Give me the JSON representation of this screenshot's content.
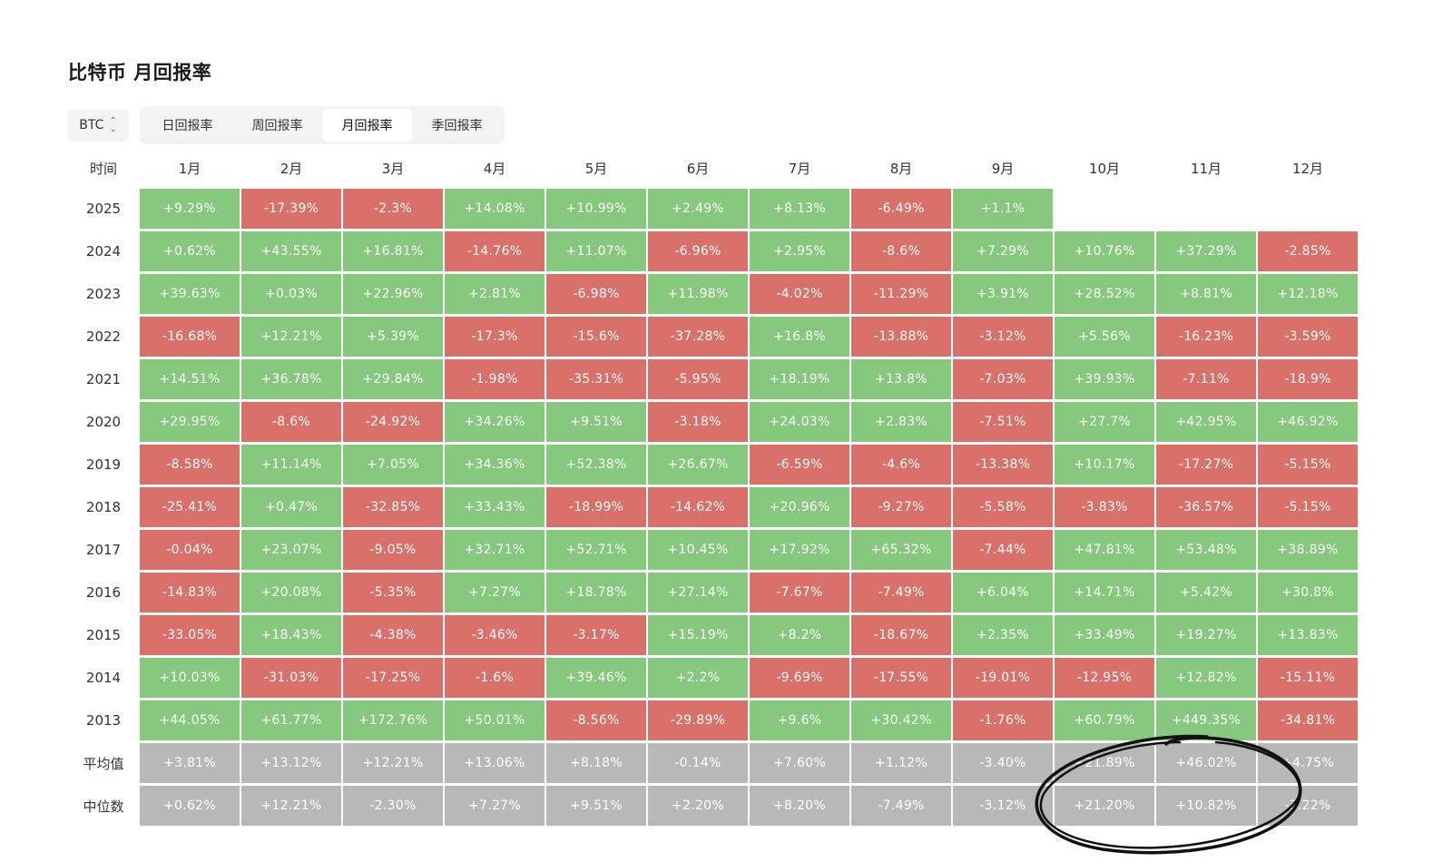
{
  "title": "比特币 月回报率",
  "asset_select": {
    "value": "BTC",
    "icon": "chevron-up-down-icon"
  },
  "tabs": [
    {
      "label": "日回报率",
      "active": false
    },
    {
      "label": "周回报率",
      "active": false
    },
    {
      "label": "月回报率",
      "active": true
    },
    {
      "label": "季回报率",
      "active": false
    }
  ],
  "colors": {
    "positive": "#86c87e",
    "negative": "#d9716a",
    "stat": "#b8b8b8"
  },
  "table": {
    "corner_label": "时间",
    "months": [
      "1月",
      "2月",
      "3月",
      "4月",
      "5月",
      "6月",
      "7月",
      "8月",
      "9月",
      "10月",
      "11月",
      "12月"
    ],
    "rows": [
      {
        "label": "2025",
        "values": [
          "+9.29%",
          "-17.39%",
          "-2.3%",
          "+14.08%",
          "+10.99%",
          "+2.49%",
          "+8.13%",
          "-6.49%",
          "+1.1%",
          "",
          "",
          ""
        ]
      },
      {
        "label": "2024",
        "values": [
          "+0.62%",
          "+43.55%",
          "+16.81%",
          "-14.76%",
          "+11.07%",
          "-6.96%",
          "+2.95%",
          "-8.6%",
          "+7.29%",
          "+10.76%",
          "+37.29%",
          "-2.85%"
        ]
      },
      {
        "label": "2023",
        "values": [
          "+39.63%",
          "+0.03%",
          "+22.96%",
          "+2.81%",
          "-6.98%",
          "+11.98%",
          "-4.02%",
          "-11.29%",
          "+3.91%",
          "+28.52%",
          "+8.81%",
          "+12.18%"
        ]
      },
      {
        "label": "2022",
        "values": [
          "-16.68%",
          "+12.21%",
          "+5.39%",
          "-17.3%",
          "-15.6%",
          "-37.28%",
          "+16.8%",
          "-13.88%",
          "-3.12%",
          "+5.56%",
          "-16.23%",
          "-3.59%"
        ]
      },
      {
        "label": "2021",
        "values": [
          "+14.51%",
          "+36.78%",
          "+29.84%",
          "-1.98%",
          "-35.31%",
          "-5.95%",
          "+18.19%",
          "+13.8%",
          "-7.03%",
          "+39.93%",
          "-7.11%",
          "-18.9%"
        ]
      },
      {
        "label": "2020",
        "values": [
          "+29.95%",
          "-8.6%",
          "-24.92%",
          "+34.26%",
          "+9.51%",
          "-3.18%",
          "+24.03%",
          "+2.83%",
          "-7.51%",
          "+27.7%",
          "+42.95%",
          "+46.92%"
        ]
      },
      {
        "label": "2019",
        "values": [
          "-8.58%",
          "+11.14%",
          "+7.05%",
          "+34.36%",
          "+52.38%",
          "+26.67%",
          "-6.59%",
          "-4.6%",
          "-13.38%",
          "+10.17%",
          "-17.27%",
          "-5.15%"
        ]
      },
      {
        "label": "2018",
        "values": [
          "-25.41%",
          "+0.47%",
          "-32.85%",
          "+33.43%",
          "-18.99%",
          "-14.62%",
          "+20.96%",
          "-9.27%",
          "-5.58%",
          "-3.83%",
          "-36.57%",
          "-5.15%"
        ]
      },
      {
        "label": "2017",
        "values": [
          "-0.04%",
          "+23.07%",
          "-9.05%",
          "+32.71%",
          "+52.71%",
          "+10.45%",
          "+17.92%",
          "+65.32%",
          "-7.44%",
          "+47.81%",
          "+53.48%",
          "+38.89%"
        ]
      },
      {
        "label": "2016",
        "values": [
          "-14.83%",
          "+20.08%",
          "-5.35%",
          "+7.27%",
          "+18.78%",
          "+27.14%",
          "-7.67%",
          "-7.49%",
          "+6.04%",
          "+14.71%",
          "+5.42%",
          "+30.8%"
        ]
      },
      {
        "label": "2015",
        "values": [
          "-33.05%",
          "+18.43%",
          "-4.38%",
          "-3.46%",
          "-3.17%",
          "+15.19%",
          "+8.2%",
          "-18.67%",
          "+2.35%",
          "+33.49%",
          "+19.27%",
          "+13.83%"
        ]
      },
      {
        "label": "2014",
        "values": [
          "+10.03%",
          "-31.03%",
          "-17.25%",
          "-1.6%",
          "+39.46%",
          "+2.2%",
          "-9.69%",
          "-17.55%",
          "-19.01%",
          "-12.95%",
          "+12.82%",
          "-15.11%"
        ]
      },
      {
        "label": "2013",
        "values": [
          "+44.05%",
          "+61.77%",
          "+172.76%",
          "+50.01%",
          "-8.56%",
          "-29.89%",
          "+9.6%",
          "+30.42%",
          "-1.76%",
          "+60.79%",
          "+449.35%",
          "-34.81%"
        ]
      }
    ],
    "stat_rows": [
      {
        "label": "平均值",
        "values": [
          "+3.81%",
          "+13.12%",
          "+12.21%",
          "+13.06%",
          "+8.18%",
          "-0.14%",
          "+7.60%",
          "+1.12%",
          "-3.40%",
          "+21.89%",
          "+46.02%",
          "+4.75%"
        ]
      },
      {
        "label": "中位数",
        "values": [
          "+0.62%",
          "+12.21%",
          "-2.30%",
          "+7.27%",
          "+9.51%",
          "+2.20%",
          "+8.20%",
          "-7.49%",
          "-3.12%",
          "+21.20%",
          "+10.82%",
          "-3.22%"
        ]
      }
    ]
  },
  "annotation": {
    "type": "hand-drawn-circle",
    "color": "#111111"
  }
}
